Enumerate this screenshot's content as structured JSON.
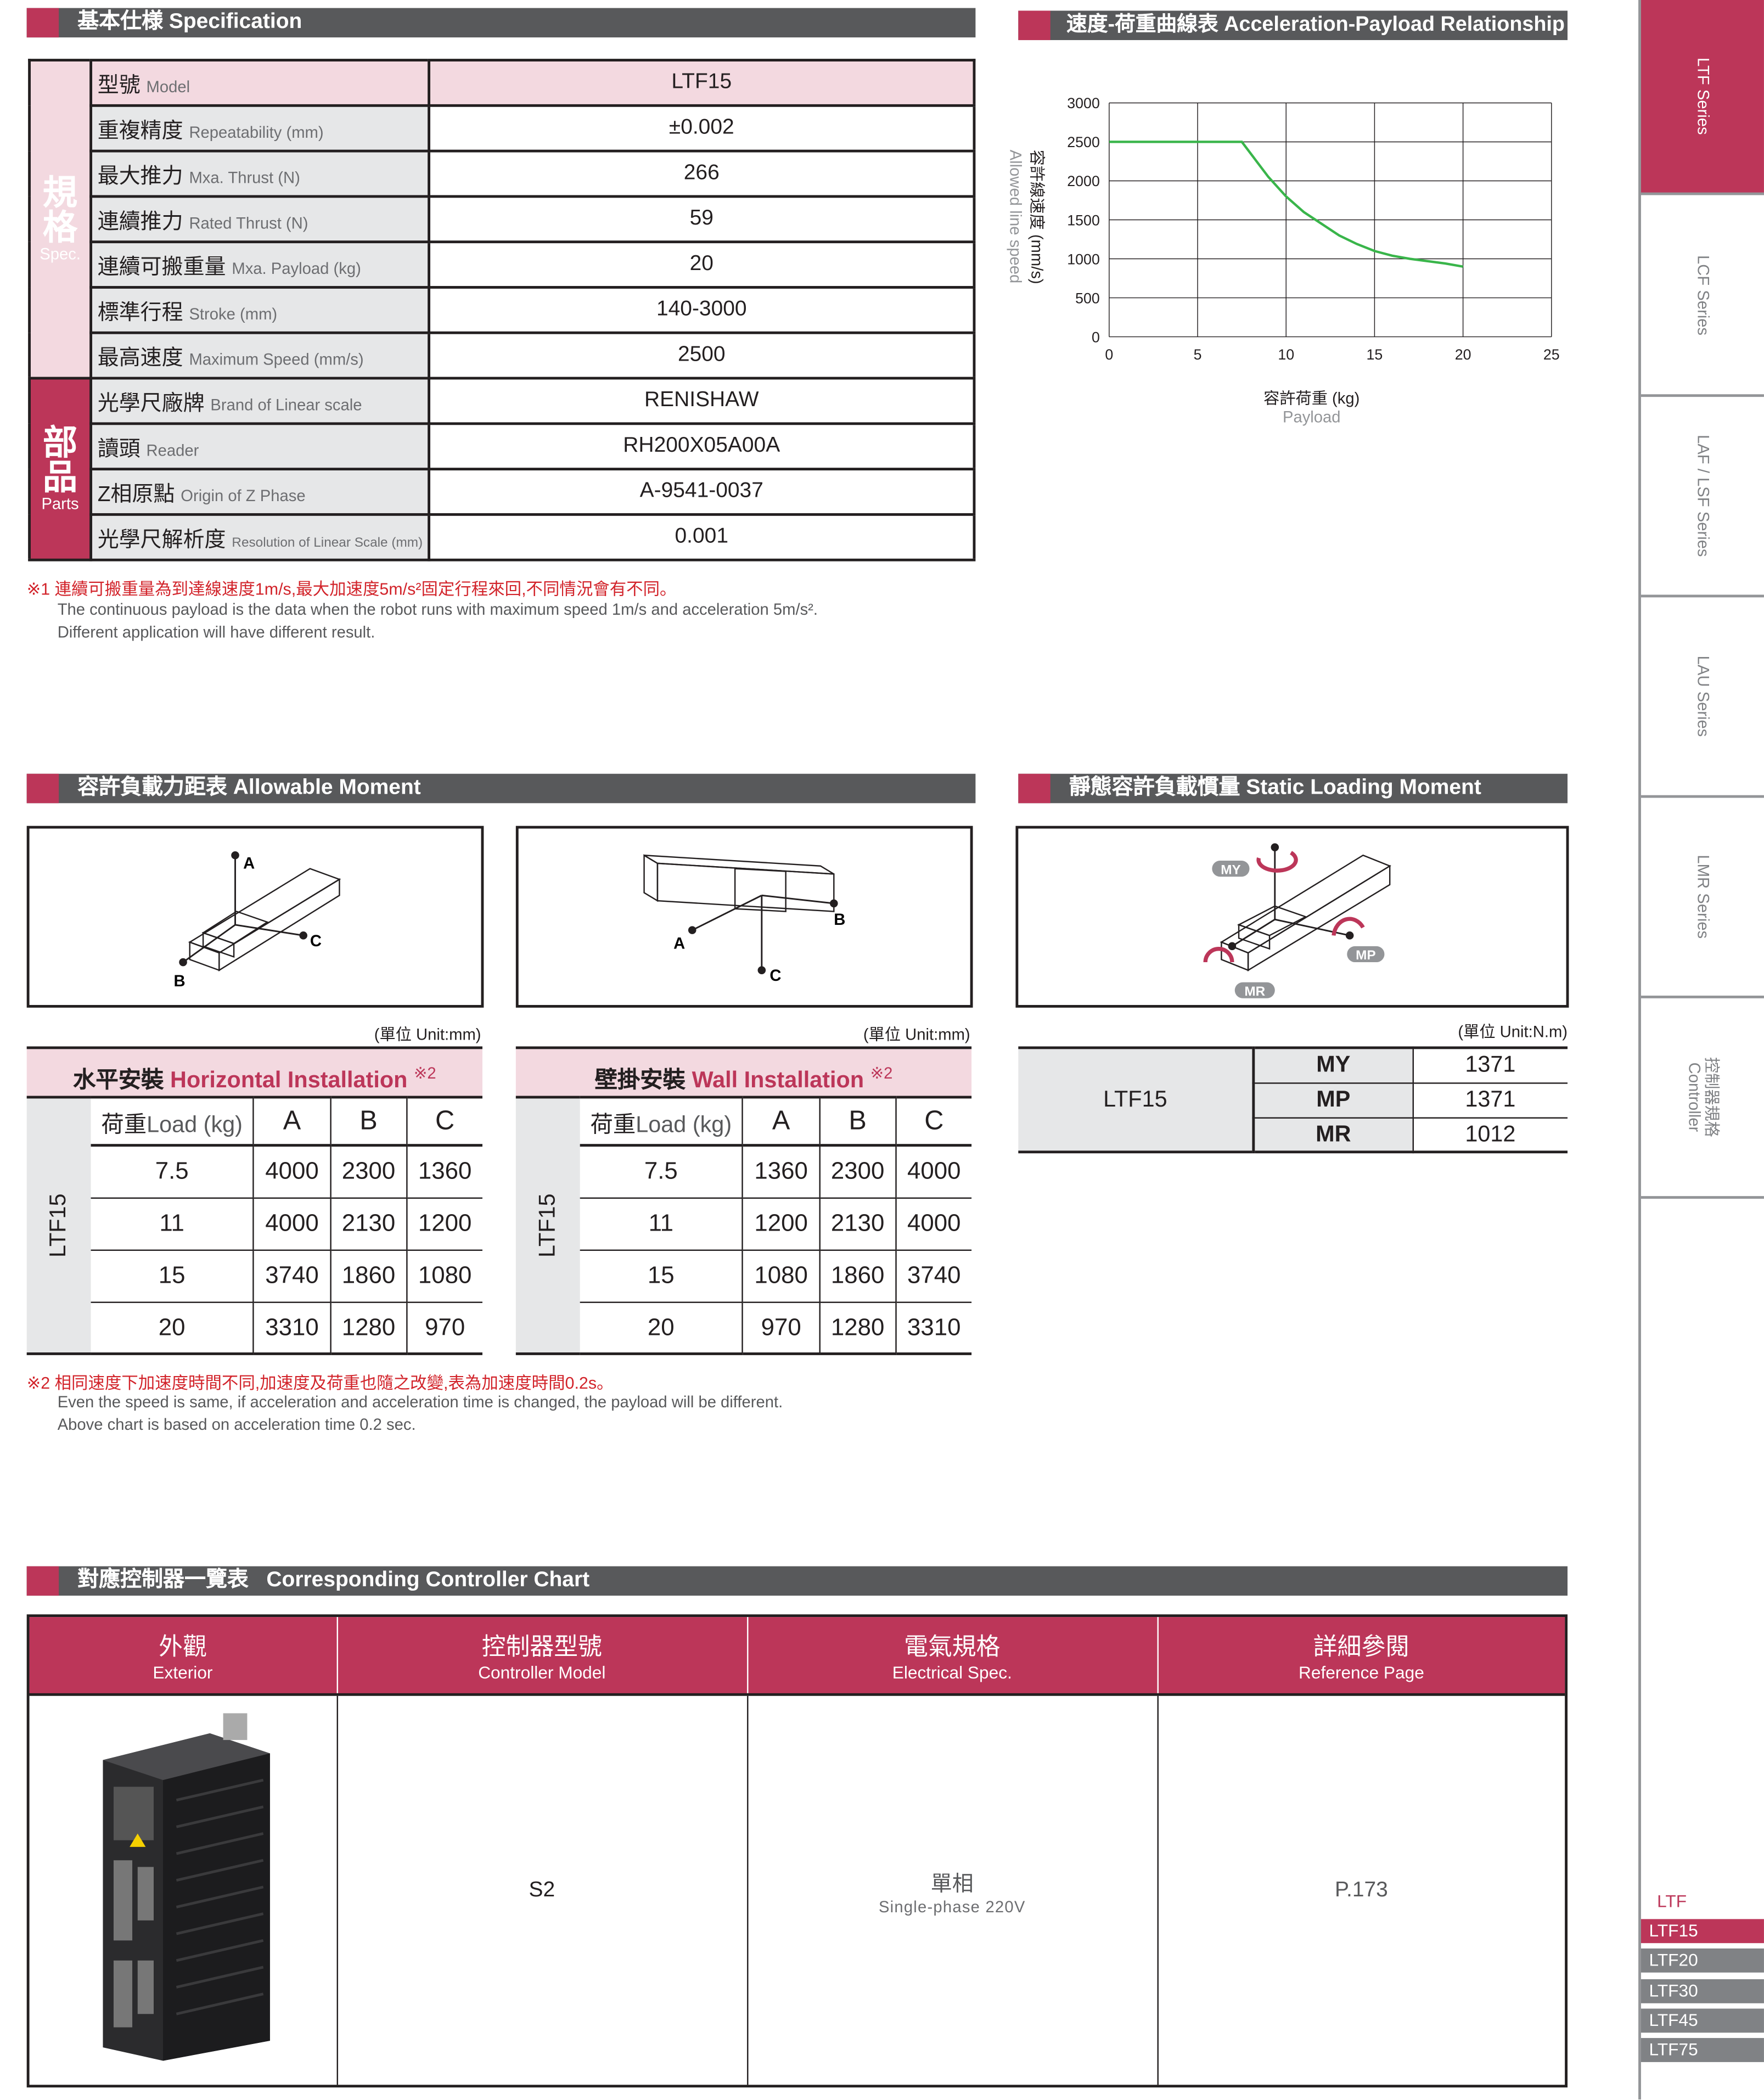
{
  "spec": {
    "title": "基本仕様  Specification",
    "group_spec": {
      "zh": "規格",
      "en": "Spec."
    },
    "group_parts": {
      "zh": "部品",
      "en": "Parts"
    },
    "rows": [
      {
        "zh": "型號",
        "en": "Model",
        "value": "LTF15"
      },
      {
        "zh": "重複精度",
        "en": "Repeatability (mm)",
        "value": "±0.002"
      },
      {
        "zh": "最大推力",
        "en": "Mxa. Thrust (N)",
        "value": "266"
      },
      {
        "zh": "連續推力",
        "en": "Rated Thrust (N)",
        "value": "59"
      },
      {
        "zh": "連續可搬重量",
        "en": "Mxa. Payload (kg)",
        "value": "20"
      },
      {
        "zh": "標準行程",
        "en": "Stroke (mm)",
        "value": "140-3000"
      },
      {
        "zh": "最高速度",
        "en": "Maximum Speed (mm/s)",
        "value": "2500"
      },
      {
        "zh": "光學尺廠牌",
        "en": "Brand of Linear scale",
        "value": "RENISHAW"
      },
      {
        "zh": "讀頭",
        "en": "Reader",
        "value": "RH200X05A00A"
      },
      {
        "zh": "Z相原點",
        "en": "Origin of Z Phase",
        "value": "A-9541-0037"
      },
      {
        "zh": "光學尺解析度",
        "en": "Resolution of Linear Scale (mm)",
        "value": "0.001"
      }
    ],
    "note1_zh": "※1 連續可搬重量為到達線速度1m/s,最大加速度5m/s²固定行程來回,不同情況會有不同。",
    "note1_en1": "The continuous payload is the data when the robot runs with maximum speed 1m/s and acceleration 5m/s².",
    "note1_en2": "Different application will have different result."
  },
  "chart_data": {
    "type": "line",
    "title": "速度-荷重曲線表 Acceleration-Payload Relationship",
    "xlabel": "容許荷重 (kg)",
    "xlabel_en": "Payload",
    "ylabel": "容許線速度 (mm/s)",
    "ylabel_en": "Allowed line speed",
    "xlim": [
      0,
      25
    ],
    "ylim": [
      0,
      3000
    ],
    "xticks": [
      0,
      5,
      10,
      15,
      20,
      25
    ],
    "yticks": [
      0,
      500,
      1000,
      1500,
      2000,
      2500,
      3000
    ],
    "grid": true,
    "line_color": "#39b54a",
    "x": [
      0,
      7.5,
      9,
      10,
      11,
      12,
      13,
      14,
      15,
      16,
      17,
      18,
      19,
      20
    ],
    "y": [
      2500,
      2500,
      2050,
      1800,
      1600,
      1450,
      1300,
      1190,
      1100,
      1040,
      1000,
      970,
      940,
      900
    ]
  },
  "moment": {
    "title": "容許負載力距表  Allowable Moment",
    "unit_mm": "(單位  Unit:mm)",
    "labels": {
      "a": "A",
      "b": "B",
      "c": "C"
    },
    "horizontal": {
      "title_zh": "水平安裝",
      "title_en": "Horizontal Installation",
      "mark": "※2",
      "model": "LTF15",
      "headers": {
        "load_zh": "荷重",
        "load_en": "Load (kg)",
        "a": "A",
        "b": "B",
        "c": "C"
      },
      "rows": [
        {
          "load": "7.5",
          "a": "4000",
          "b": "2300",
          "c": "1360"
        },
        {
          "load": "11",
          "a": "4000",
          "b": "2130",
          "c": "1200"
        },
        {
          "load": "15",
          "a": "3740",
          "b": "1860",
          "c": "1080"
        },
        {
          "load": "20",
          "a": "3310",
          "b": "1280",
          "c": "970"
        }
      ]
    },
    "wall": {
      "title_zh": "壁掛安裝",
      "title_en": "Wall Installation",
      "mark": "※2",
      "model": "LTF15",
      "headers": {
        "load_zh": "荷重",
        "load_en": "Load (kg)",
        "a": "A",
        "b": "B",
        "c": "C"
      },
      "rows": [
        {
          "load": "7.5",
          "a": "1360",
          "b": "2300",
          "c": "4000"
        },
        {
          "load": "11",
          "a": "1200",
          "b": "2130",
          "c": "4000"
        },
        {
          "load": "15",
          "a": "1080",
          "b": "1860",
          "c": "3740"
        },
        {
          "load": "20",
          "a": "970",
          "b": "1280",
          "c": "3310"
        }
      ]
    },
    "note2_zh": "※2 相同速度下加速度時間不同,加速度及荷重也隨之改變,表為加速度時間0.2s。",
    "note2_en1": "Even the speed is same, if acceleration and acceleration time is changed, the payload will be different.",
    "note2_en2": "Above chart is based on acceleration time 0.2 sec."
  },
  "static": {
    "title": "靜態容許負載慣量  Static Loading Moment",
    "unit": "(單位  Unit:N.m)",
    "model": "LTF15",
    "labels": {
      "my": "MY",
      "mp": "MP",
      "mr": "MR"
    },
    "rows": [
      {
        "key": "MY",
        "value": "1371"
      },
      {
        "key": "MP",
        "value": "1371"
      },
      {
        "key": "MR",
        "value": "1012"
      }
    ]
  },
  "controller": {
    "title_zh": "對應控制器一覽表",
    "title_en": "Corresponding Controller Chart",
    "headers": [
      {
        "zh": "外觀",
        "en": "Exterior"
      },
      {
        "zh": "控制器型號",
        "en": "Controller Model"
      },
      {
        "zh": "電氣規格",
        "en": "Electrical Spec."
      },
      {
        "zh": "詳細參閱",
        "en": "Reference Page"
      }
    ],
    "row": {
      "model": "S2",
      "elec_zh": "單相",
      "elec_en": "Single-phase 220V",
      "page": "P.173"
    }
  },
  "sidebar": {
    "series": [
      {
        "label": "LTF Series"
      },
      {
        "label": "LCF Series"
      },
      {
        "label": "LAF / LSF Series"
      },
      {
        "label": "LAU Series"
      },
      {
        "label": "LMR Series"
      },
      {
        "label": "控制器規格",
        "label2": "Controller"
      }
    ],
    "group": "LTF",
    "models": [
      "LTF15",
      "LTF20",
      "LTF30",
      "LTF45",
      "LTF75"
    ]
  },
  "colors": {
    "accent": "#bc3659",
    "header_gray": "#58595b",
    "pink_light": "#f3d9e0",
    "cell_gray": "#e6e7e8",
    "curve": "#39b54a"
  }
}
